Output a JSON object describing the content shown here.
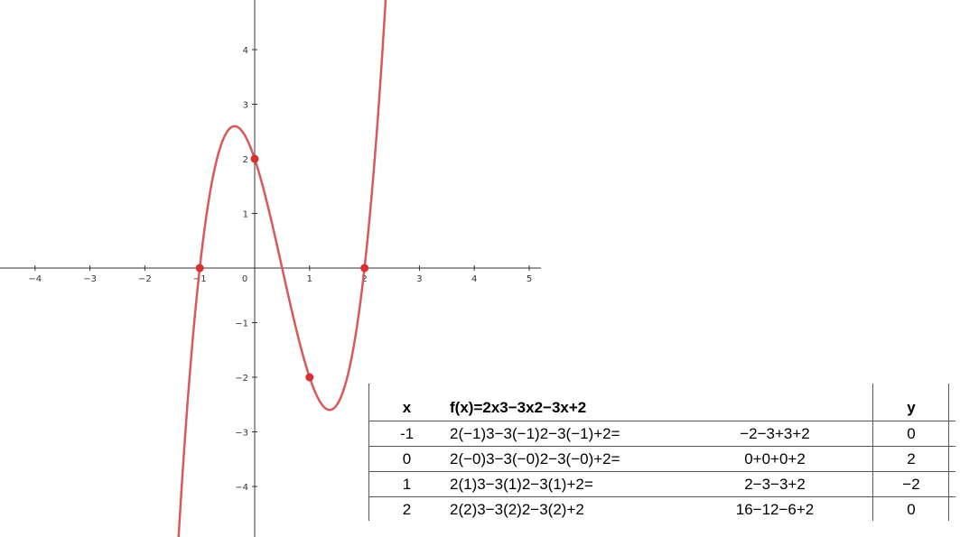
{
  "chart_data": {
    "type": "line",
    "function": "2x^3-3x^2-3x+2",
    "xlim": [
      -4.6,
      5.2
    ],
    "ylim": [
      -4.9,
      4.9
    ],
    "x_ticks": [
      "−4",
      "−3",
      "−2",
      "−1",
      "0",
      "1",
      "2",
      "3",
      "4",
      "5"
    ],
    "y_ticks": [
      "4",
      "3",
      "2",
      "1",
      "−1",
      "−2",
      "−3",
      "−4"
    ],
    "curve_color": "#d9585b",
    "point_color": "#d63030",
    "points": [
      {
        "x": -1,
        "y": 0
      },
      {
        "x": 0,
        "y": 2
      },
      {
        "x": 1,
        "y": -2
      },
      {
        "x": 2,
        "y": 0
      }
    ]
  },
  "table": {
    "headers": {
      "x": "x",
      "expr": "f(x)=2x3−3x2−3x+2",
      "simp": "",
      "y": "y"
    },
    "rows": [
      {
        "x": "-1",
        "expr": "2(−1)3−3(−1)2−3(−1)+2=",
        "simp": "−2−3+3+2",
        "y": "0"
      },
      {
        "x": "0",
        "expr": "2(−0)3−3(−0)2−3(−0)+2=",
        "simp": "0+0+0+2",
        "y": "2"
      },
      {
        "x": "1",
        "expr": "2(1)3−3(1)2−3(1)+2=",
        "simp": "2−3−3+2",
        "y": "−2"
      },
      {
        "x": "2",
        "expr": "2(2)3−3(2)2−3(2)+2",
        "simp": "16−12−6+2",
        "y": "0"
      }
    ]
  }
}
